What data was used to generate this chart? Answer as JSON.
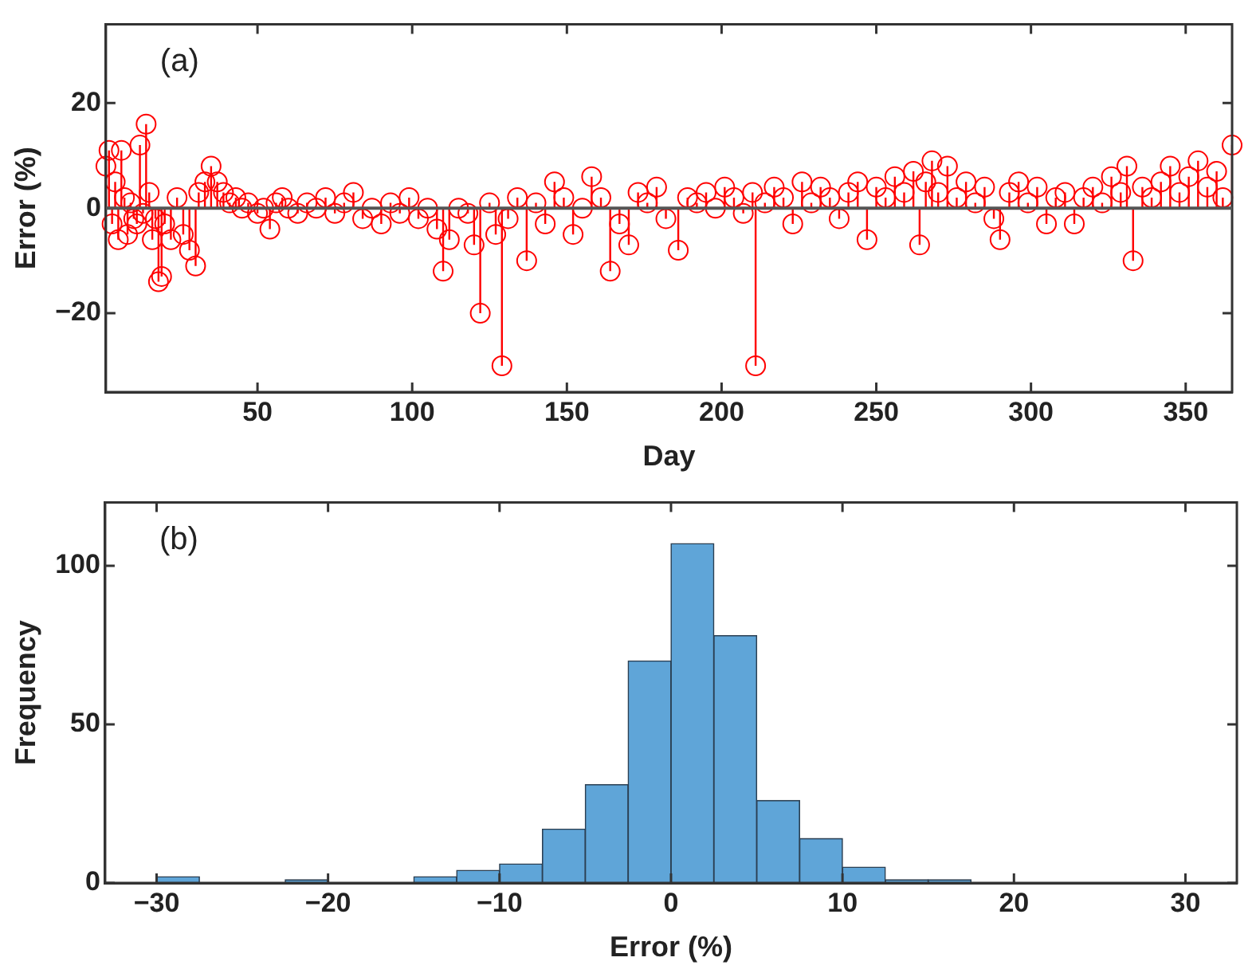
{
  "chart_data": [
    {
      "type": "lollipop",
      "xlabel": "Day",
      "ylabel": "Error (%)",
      "annotations": [
        "(a)"
      ],
      "color": "#ff0000",
      "marker": "circle",
      "grid": false,
      "legend": false,
      "x": [
        1,
        2,
        3,
        4,
        5,
        6,
        7,
        8,
        9,
        10,
        11,
        12,
        13,
        14,
        15,
        16,
        17,
        18,
        19,
        20,
        22,
        24,
        26,
        28,
        30,
        31,
        33,
        35,
        37,
        39,
        41,
        43,
        45,
        47,
        50,
        52,
        54,
        56,
        58,
        60,
        63,
        66,
        69,
        72,
        75,
        78,
        81,
        84,
        87,
        90,
        93,
        96,
        99,
        102,
        105,
        108,
        110,
        112,
        115,
        118,
        120,
        122,
        125,
        127,
        129,
        131,
        134,
        137,
        140,
        143,
        146,
        149,
        152,
        155,
        158,
        161,
        164,
        167,
        170,
        173,
        176,
        179,
        182,
        186,
        189,
        192,
        195,
        198,
        201,
        204,
        207,
        210,
        211,
        214,
        217,
        220,
        223,
        226,
        229,
        232,
        235,
        238,
        241,
        244,
        247,
        250,
        253,
        256,
        259,
        262,
        264,
        266,
        268,
        270,
        273,
        276,
        279,
        282,
        285,
        288,
        290,
        293,
        296,
        299,
        302,
        305,
        308,
        311,
        314,
        317,
        320,
        323,
        326,
        329,
        331,
        333,
        336,
        339,
        342,
        345,
        348,
        351,
        354,
        357,
        360,
        362,
        365
      ],
      "values": [
        8,
        11,
        -3,
        5,
        -6,
        11,
        2,
        -5,
        1,
        -2,
        -3,
        12,
        -1,
        16,
        3,
        -6,
        -2,
        -14,
        -13,
        -3,
        -6,
        2,
        -5,
        -8,
        -11,
        3,
        5,
        8,
        5,
        3,
        1,
        2,
        0,
        1,
        -1,
        0,
        -4,
        1,
        2,
        0,
        -1,
        1,
        0,
        2,
        -1,
        1,
        3,
        -2,
        0,
        -3,
        1,
        -1,
        2,
        -2,
        0,
        -4,
        -12,
        -6,
        0,
        -1,
        -7,
        -20,
        1,
        -5,
        -30,
        -2,
        2,
        -10,
        1,
        -3,
        5,
        2,
        -5,
        0,
        6,
        2,
        -12,
        -3,
        -7,
        3,
        1,
        4,
        -2,
        -8,
        2,
        1,
        3,
        0,
        4,
        2,
        -1,
        3,
        -30,
        1,
        4,
        2,
        -3,
        5,
        1,
        4,
        2,
        -2,
        3,
        5,
        -6,
        4,
        2,
        6,
        3,
        7,
        -7,
        5,
        9,
        3,
        8,
        2,
        5,
        1,
        4,
        -2,
        -6,
        3,
        5,
        1,
        4,
        -3,
        2,
        3,
        -3,
        2,
        4,
        1,
        6,
        3,
        8,
        -10,
        4,
        2,
        5,
        8,
        3,
        6,
        9,
        4,
        7,
        2,
        12
      ],
      "xlim": [
        1,
        365
      ],
      "xticks": [
        50,
        100,
        150,
        200,
        250,
        300,
        350
      ],
      "ylim": [
        -35,
        35
      ],
      "yticks": [
        -20,
        0,
        20
      ],
      "ref_lines": [
        {
          "axis": "y",
          "value": 0,
          "color": "#555555"
        }
      ]
    },
    {
      "type": "histogram",
      "xlabel": "Error (%)",
      "ylabel": "Frequency",
      "annotations": [
        "(b)"
      ],
      "color": "#5fa5d8",
      "grid": false,
      "legend": false,
      "bins": [
        -30,
        -27.5,
        -25,
        -22.5,
        -20,
        -17.5,
        -15,
        -12.5,
        -10,
        -7.5,
        -5,
        -2.5,
        0,
        2.5,
        5,
        7.5,
        10,
        12.5,
        15,
        17.5
      ],
      "values": [
        2,
        0,
        0,
        1,
        0,
        0,
        2,
        4,
        6,
        17,
        31,
        70,
        107,
        78,
        26,
        14,
        5,
        1,
        1
      ],
      "xlim": [
        -33,
        33
      ],
      "xticks": [
        -30,
        -20,
        -10,
        0,
        10,
        20,
        30
      ],
      "ylim": [
        0,
        120
      ],
      "yticks": [
        0,
        50,
        100
      ]
    }
  ]
}
